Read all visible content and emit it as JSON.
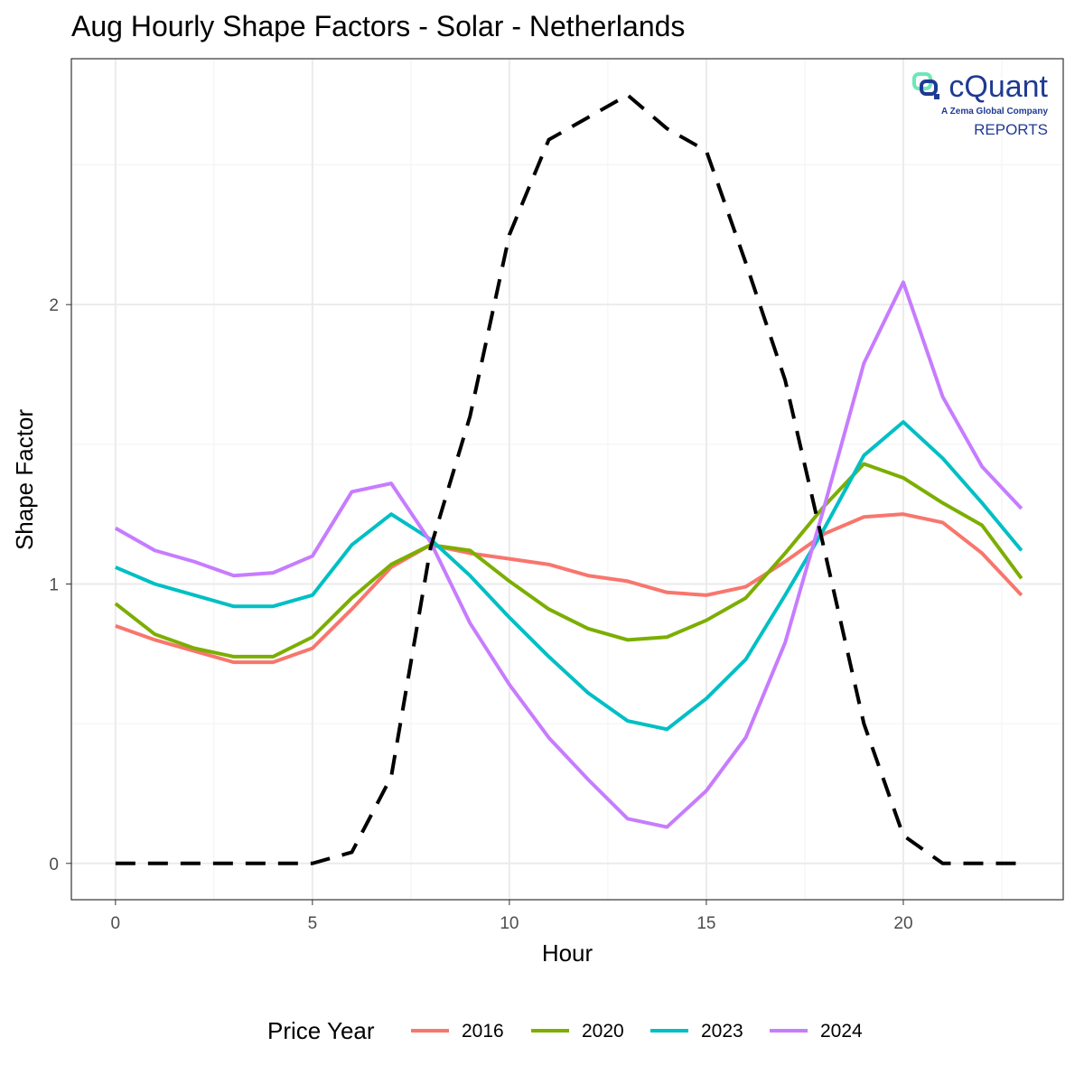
{
  "chart_data": {
    "type": "line",
    "title": "Aug Hourly Shape Factors - Solar - Netherlands",
    "xlabel": "Hour",
    "ylabel": "Shape Factor",
    "xlim": [
      -1.12,
      24.06
    ],
    "ylim": [
      -0.13,
      2.88
    ],
    "x_ticks": [
      0,
      5,
      10,
      15,
      20
    ],
    "y_ticks": [
      0,
      1,
      2
    ],
    "grid": true,
    "legend": {
      "title": "Price Year",
      "position": "bottom"
    },
    "x": [
      0,
      1,
      2,
      3,
      4,
      5,
      6,
      7,
      8,
      9,
      10,
      11,
      12,
      13,
      14,
      15,
      16,
      17,
      18,
      19,
      20,
      21,
      22,
      23
    ],
    "series": [
      {
        "name": "2016",
        "color": "#F8766D",
        "values": [
          0.85,
          0.8,
          0.76,
          0.72,
          0.72,
          0.77,
          0.91,
          1.06,
          1.14,
          1.11,
          1.09,
          1.07,
          1.03,
          1.01,
          0.97,
          0.96,
          0.99,
          1.08,
          1.18,
          1.24,
          1.25,
          1.22,
          1.11,
          0.96
        ]
      },
      {
        "name": "2020",
        "color": "#7CAE00",
        "values": [
          0.93,
          0.82,
          0.77,
          0.74,
          0.74,
          0.81,
          0.95,
          1.07,
          1.14,
          1.12,
          1.01,
          0.91,
          0.84,
          0.8,
          0.81,
          0.87,
          0.95,
          1.11,
          1.28,
          1.43,
          1.38,
          1.29,
          1.21,
          1.02
        ]
      },
      {
        "name": "2023",
        "color": "#00BFC4",
        "values": [
          1.06,
          1.0,
          0.96,
          0.92,
          0.92,
          0.96,
          1.14,
          1.25,
          1.16,
          1.03,
          0.88,
          0.74,
          0.61,
          0.51,
          0.48,
          0.59,
          0.73,
          0.96,
          1.2,
          1.46,
          1.58,
          1.45,
          1.29,
          1.12
        ]
      },
      {
        "name": "2024",
        "color": "#C77CFF",
        "values": [
          1.2,
          1.12,
          1.08,
          1.03,
          1.04,
          1.1,
          1.33,
          1.36,
          1.15,
          0.86,
          0.64,
          0.45,
          0.3,
          0.16,
          0.13,
          0.26,
          0.45,
          0.79,
          1.28,
          1.79,
          2.08,
          1.67,
          1.42,
          1.27
        ]
      }
    ],
    "solar_profile": {
      "color": "#000000",
      "style": "dashed",
      "values": [
        0,
        0,
        0,
        0,
        0,
        0,
        0.04,
        0.31,
        1.13,
        1.6,
        2.25,
        2.59,
        2.67,
        2.75,
        2.63,
        2.55,
        2.15,
        1.73,
        1.12,
        0.5,
        0.1,
        0,
        0,
        0
      ]
    }
  },
  "logo": {
    "brand": "cQuant",
    "tagline": "A Zema Global Company",
    "label": "REPORTS",
    "color": "#1f3a93",
    "accent": "#6ee7b7"
  }
}
